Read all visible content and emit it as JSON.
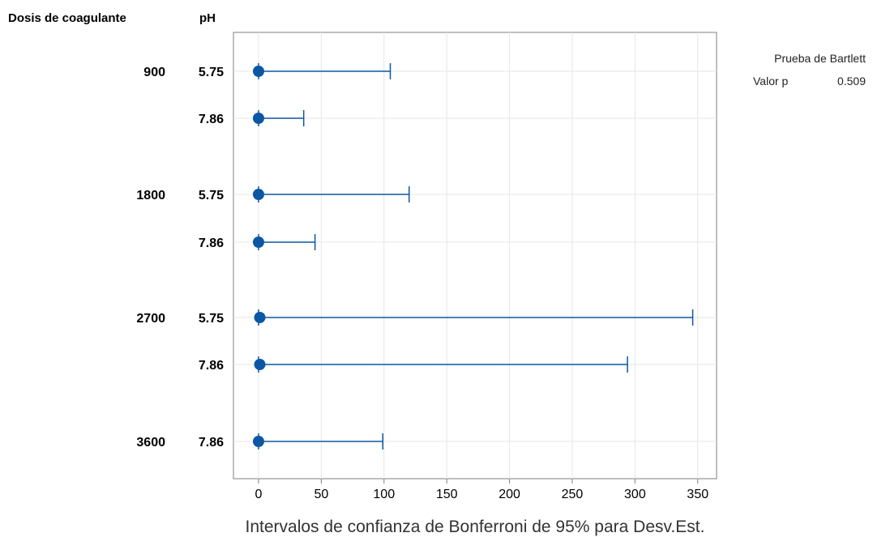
{
  "colors": {
    "marker": "#0b57a4",
    "grid": "#e6e6e6",
    "frame": "#7f7f7f"
  },
  "chart_data": {
    "type": "interval",
    "headers": {
      "col1": "Dosis de coagulante",
      "col2": "pH"
    },
    "xlabel": "Intervalos de confianza de Bonferroni de 95% para Desv.Est.",
    "xlim": [
      -20,
      365
    ],
    "xticks": [
      0,
      50,
      100,
      150,
      200,
      250,
      300,
      350
    ],
    "grid": true,
    "rows": [
      {
        "dose": "900",
        "ph": "5.75",
        "value": 0,
        "lower": 0,
        "upper": 105
      },
      {
        "dose": "",
        "ph": "7.86",
        "value": 0,
        "lower": 0,
        "upper": 36
      },
      {
        "dose": "1800",
        "ph": "5.75",
        "value": 0,
        "lower": 0,
        "upper": 120
      },
      {
        "dose": "",
        "ph": "7.86",
        "value": 0,
        "lower": 0,
        "upper": 45
      },
      {
        "dose": "2700",
        "ph": "5.75",
        "value": 1,
        "lower": 0,
        "upper": 346
      },
      {
        "dose": "",
        "ph": "7.86",
        "value": 1,
        "lower": 0,
        "upper": 294
      },
      {
        "dose": "3600",
        "ph": "7.86",
        "value": 0,
        "lower": 0,
        "upper": 99
      }
    ],
    "test": {
      "title": "Prueba de Bartlett",
      "label": "Valor p",
      "value": "0.509"
    }
  }
}
